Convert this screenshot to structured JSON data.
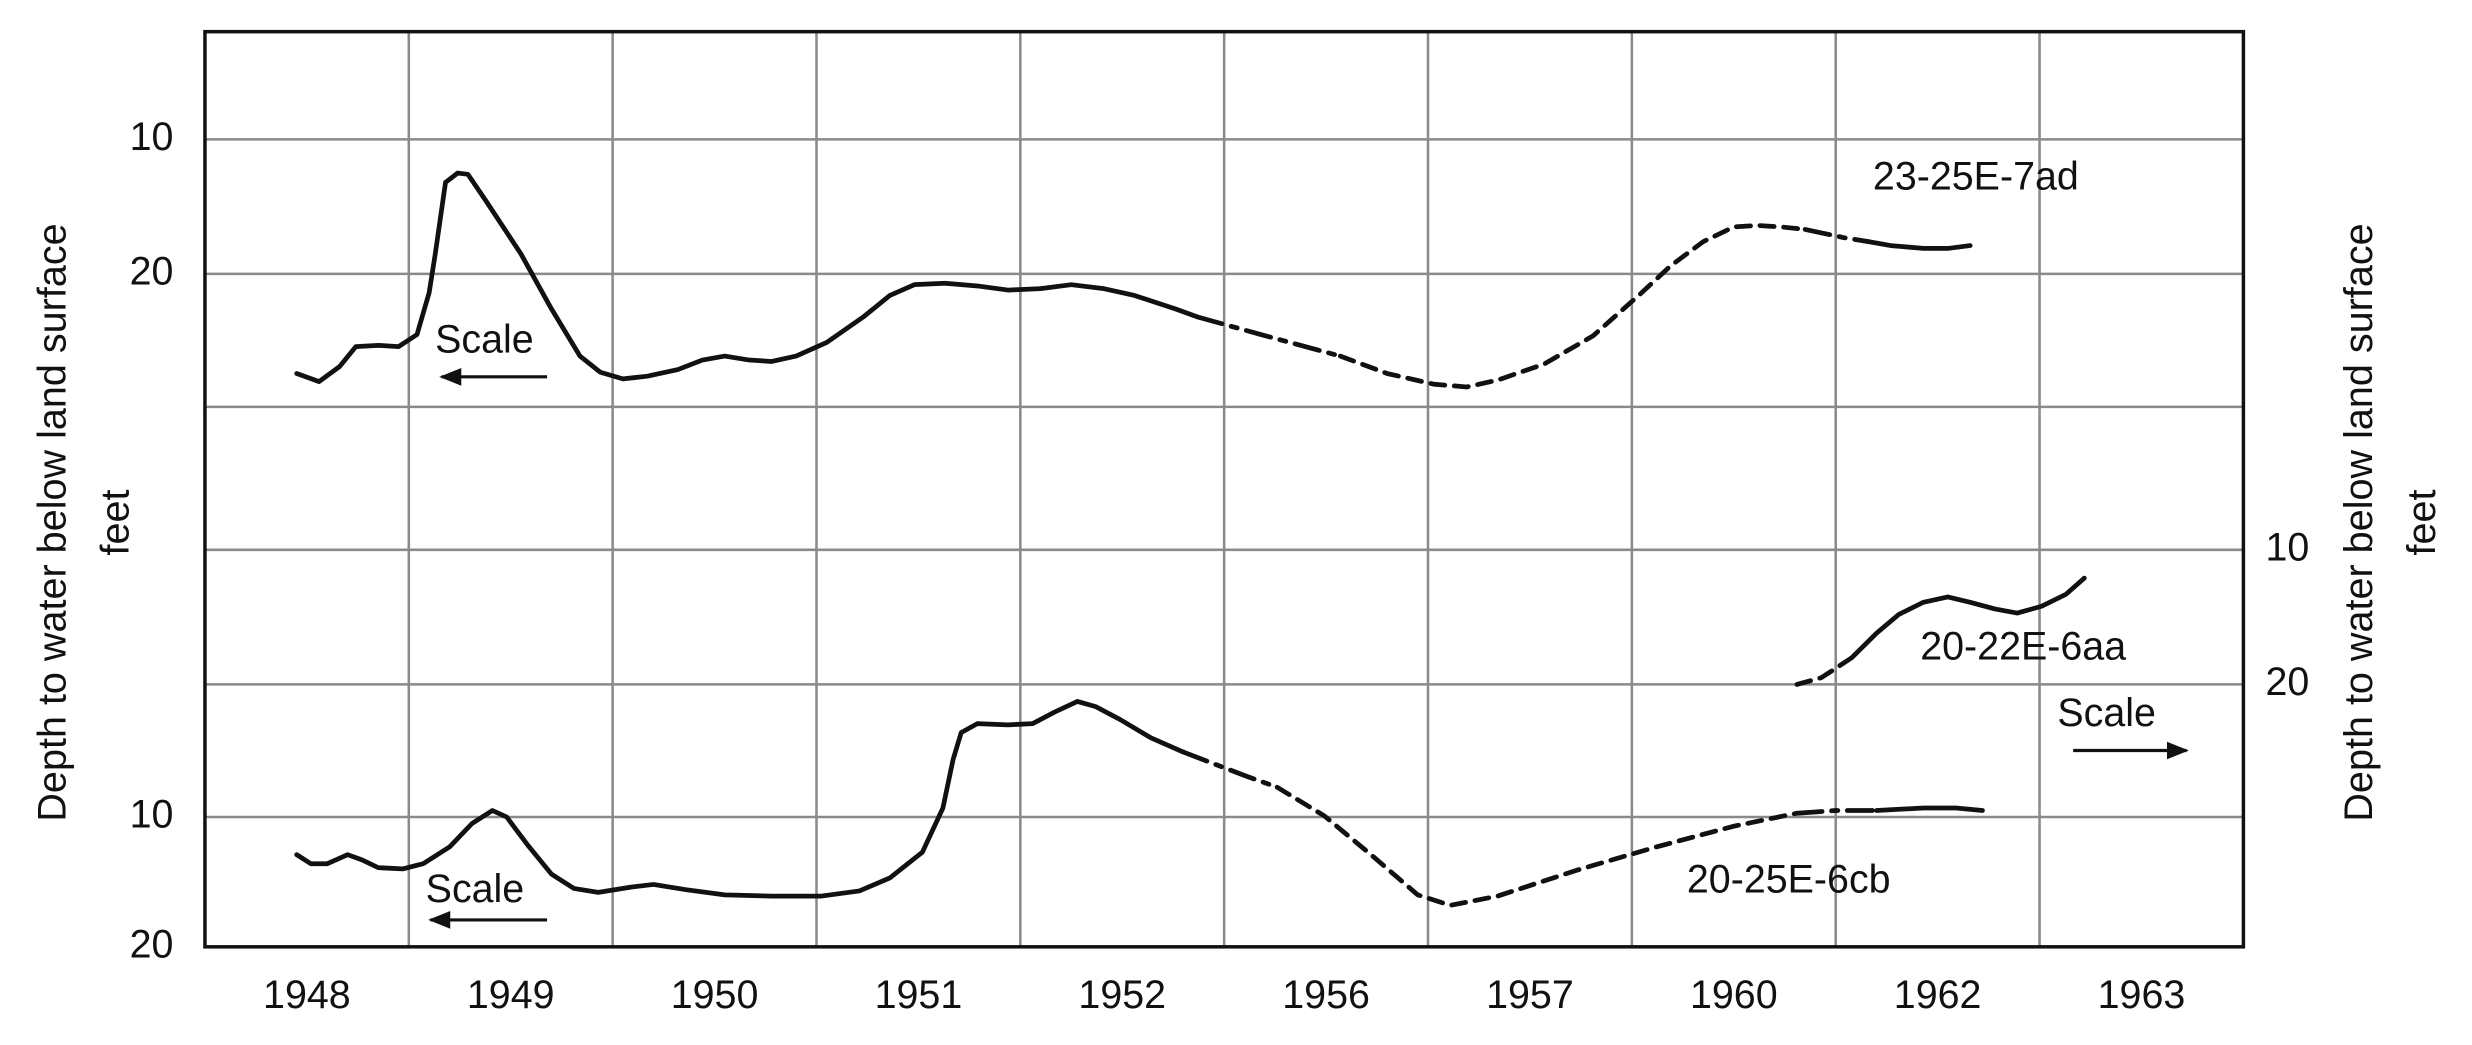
{
  "chart_data": {
    "type": "line",
    "categories": [
      1948,
      1949,
      1950,
      1951,
      1952,
      1956,
      1957,
      1960,
      1962,
      1963
    ],
    "y_label": [
      "Depth to water below land surface",
      "feet"
    ],
    "y2_label": [
      "Depth to water below land surface",
      "feet"
    ],
    "annotations": [
      "Scale",
      "Scale",
      "Scale"
    ],
    "grid": true,
    "color": "#111111",
    "series": [
      {
        "name": "23-25E-7ad",
        "axis": "y",
        "ylim": [
          2,
          70
        ],
        "yticks": [
          10,
          20
        ],
        "segments": [
          {
            "style": "solid",
            "x": [
              1948.45,
              1948.56,
              1948.66,
              1948.74,
              1948.85,
              1948.95,
              1949.04,
              1949.1,
              1949.13,
              1949.18,
              1949.24,
              1949.29,
              1949.38,
              1949.55,
              1949.7,
              1949.84,
              1949.94,
              1950.05,
              1950.17,
              1950.32,
              1950.44,
              1950.55,
              1950.67,
              1950.78,
              1950.9,
              1951.05,
              1951.23,
              1951.36,
              1951.48,
              1951.63,
              1951.79,
              1951.94,
              1952.1,
              1952.25,
              1952.41,
              1952.56,
              1952.76,
              1952.87
            ],
            "values": [
              27.4,
              28.0,
              26.9,
              25.4,
              25.3,
              25.4,
              24.5,
              21.4,
              18.5,
              13.2,
              12.5,
              12.6,
              14.6,
              18.5,
              22.6,
              26.1,
              27.3,
              27.8,
              27.6,
              27.1,
              26.4,
              26.1,
              26.4,
              26.5,
              26.1,
              25.1,
              23.2,
              21.6,
              20.8,
              20.7,
              20.9,
              21.2,
              21.1,
              20.8,
              21.1,
              21.6,
              22.6,
              23.2
            ]
          },
          {
            "style": "dashdot",
            "x": [
              1952.87,
              1956.18,
              1956.57
            ],
            "values": [
              23.2,
              24.5,
              26.1
            ]
          },
          {
            "style": "dashed",
            "x": [
              1956.57,
              1956.8,
              1957.03,
              1957.19,
              1957.34,
              1957.57,
              1957.81,
              1960.04,
              1960.19,
              1960.35,
              1960.5,
              1960.62,
              1960.73,
              1960.85
            ],
            "values": [
              26.1,
              27.4,
              28.2,
              28.4,
              27.9,
              26.7,
              24.6,
              21.5,
              19.4,
              17.6,
              16.5,
              16.4,
              16.5,
              16.7
            ]
          },
          {
            "style": "dashdot",
            "x": [
              1960.85,
              1962.04,
              1962.16
            ],
            "values": [
              16.7,
              17.3,
              17.6
            ]
          },
          {
            "style": "solid",
            "x": [
              1962.16,
              1962.27,
              1962.43,
              1962.55,
              1962.66
            ],
            "values": [
              17.6,
              17.9,
              18.1,
              18.1,
              17.9
            ]
          }
        ]
      },
      {
        "name": "20-22E-6aa",
        "axis": "y2",
        "ylim": [
          -28.5,
          39.5
        ],
        "yticks": [
          10,
          20
        ],
        "segments": [
          {
            "style": "dashed",
            "x": [
              1960.81,
              1960.93,
              1962.0,
              1962.08
            ],
            "values": [
              20.0,
              19.5,
              18.8,
              18.0
            ]
          },
          {
            "style": "solid",
            "x": [
              1962.08,
              1962.2,
              1962.31,
              1962.43,
              1962.55,
              1962.66,
              1962.78,
              1962.89,
              1963.01,
              1963.13,
              1963.22
            ],
            "values": [
              18.0,
              16.2,
              14.8,
              13.9,
              13.5,
              13.9,
              14.4,
              14.7,
              14.2,
              13.3,
              12.1
            ]
          }
        ]
      },
      {
        "name": "20-25E-6cb",
        "axis": "y",
        "ylim": [
          -50.5,
          20
        ],
        "yticks": [
          10,
          20
        ],
        "segments": [
          {
            "style": "solid",
            "x": [
              1948.45,
              1948.52,
              1948.6,
              1948.7,
              1948.77,
              1948.85,
              1948.97,
              1949.07,
              1949.2,
              1949.31,
              1949.41,
              1949.48,
              1949.58,
              1949.7,
              1949.81,
              1949.93,
              1950.09,
              1950.2,
              1950.36,
              1950.55,
              1950.78,
              1951.02,
              1951.21,
              1951.36,
              1951.52,
              1951.62,
              1951.67,
              1951.71,
              1951.79,
              1951.94,
              1952.06,
              1952.17,
              1952.28,
              1952.37,
              1952.49,
              1952.64,
              1952.8
            ],
            "values": [
              12.9,
              13.6,
              13.6,
              12.9,
              13.3,
              13.9,
              14.0,
              13.6,
              12.3,
              10.5,
              9.5,
              10.0,
              12.1,
              14.4,
              15.5,
              15.8,
              15.4,
              15.2,
              15.6,
              16.0,
              16.1,
              16.1,
              15.7,
              14.7,
              12.7,
              9.3,
              5.6,
              3.5,
              2.8,
              2.9,
              2.8,
              1.9,
              1.1,
              1.5,
              2.5,
              3.9,
              5.0
            ]
          },
          {
            "style": "dashdot",
            "x": [
              1952.8,
              1956.1,
              1956.26
            ],
            "values": [
              5.0,
              6.8,
              7.7
            ]
          },
          {
            "style": "dashed",
            "x": [
              1956.26,
              1956.49,
              1956.72,
              1956.95,
              1957.11,
              1957.34,
              1957.73,
              1960.12,
              1960.5,
              1960.81
            ],
            "values": [
              7.7,
              9.9,
              12.9,
              16.0,
              16.8,
              16.1,
              14.1,
              12.3,
              10.7,
              9.7
            ]
          },
          {
            "style": "dashdot",
            "x": [
              1960.81,
              1962.0,
              1962.2
            ],
            "values": [
              9.7,
              9.5,
              9.5
            ]
          },
          {
            "style": "solid",
            "x": [
              1962.2,
              1962.43,
              1962.59,
              1962.72
            ],
            "values": [
              9.5,
              9.3,
              9.3,
              9.5
            ]
          }
        ]
      }
    ]
  }
}
